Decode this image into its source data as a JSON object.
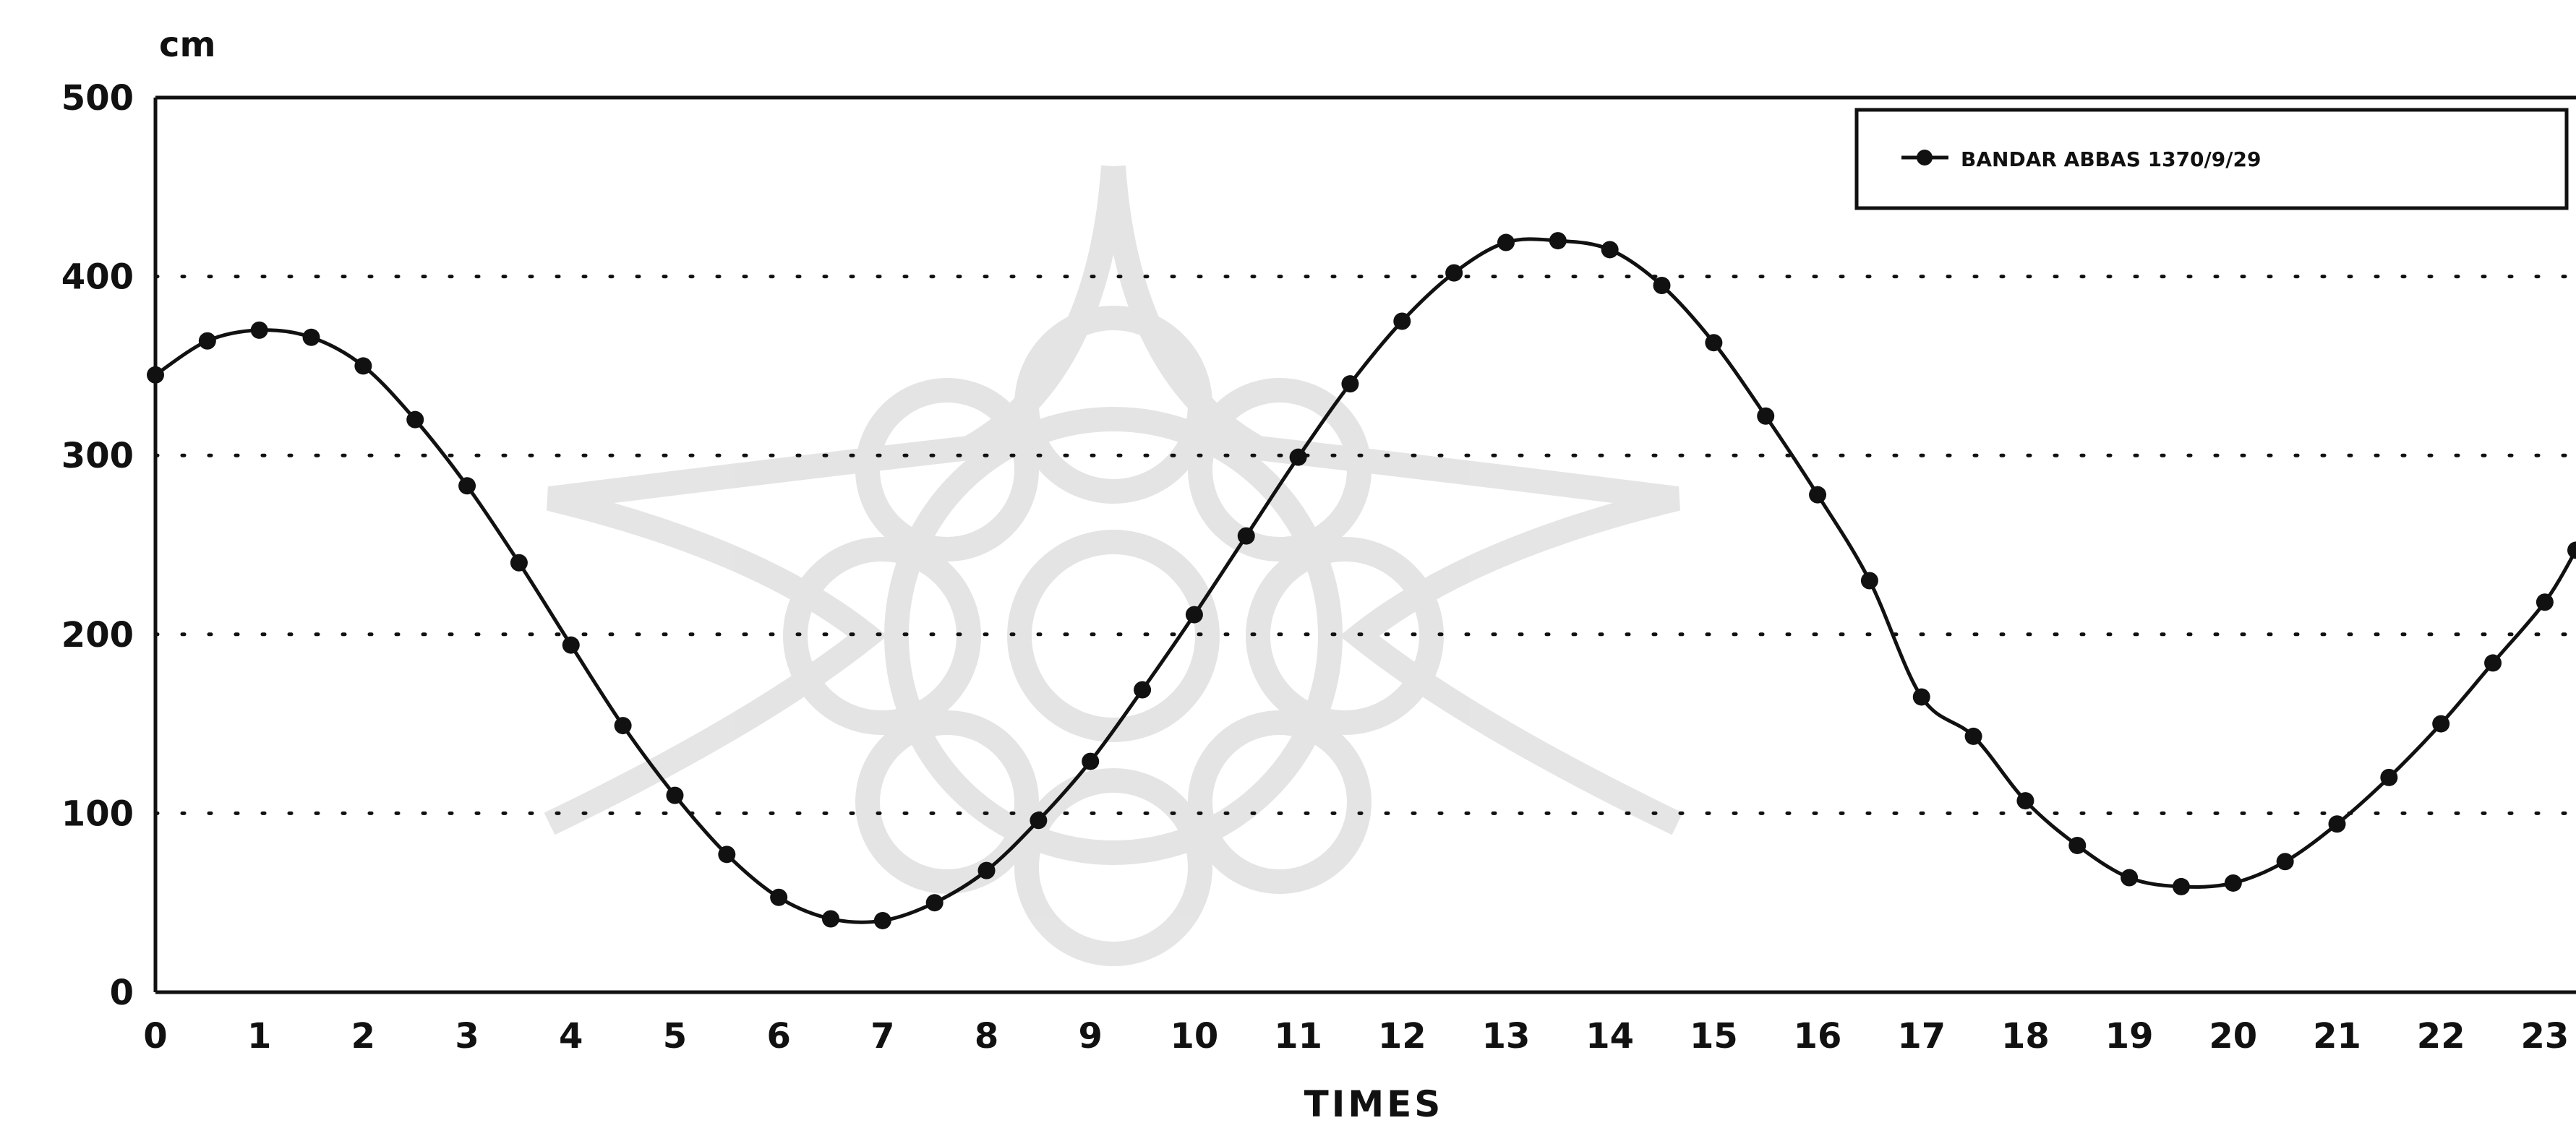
{
  "chart_data": {
    "type": "line",
    "ylabel": "cm",
    "xlabel": "TIMES",
    "xlim": [
      0,
      23.3
    ],
    "ylim": [
      0,
      500
    ],
    "xticks": [
      0,
      1,
      2,
      3,
      4,
      5,
      6,
      7,
      8,
      9,
      10,
      11,
      12,
      13,
      14,
      15,
      16,
      17,
      18,
      19,
      20,
      21,
      22,
      23
    ],
    "xtick_labels": [
      "0",
      "1",
      "2",
      "3",
      "4",
      "5",
      "6",
      "7",
      "8",
      "9",
      "10",
      "11",
      "12",
      "13",
      "14",
      "15",
      "16",
      "17",
      "18",
      "19",
      "20",
      "21",
      "22",
      "23"
    ],
    "yticks": [
      0,
      100,
      200,
      300,
      400,
      500
    ],
    "ytick_labels": [
      "0",
      "100",
      "200",
      "300",
      "400",
      "500"
    ],
    "grid": "horizontal dotted",
    "legend_position": "top-right",
    "series": [
      {
        "name": "BANDAR ABBAS 1370/9/29",
        "color": "#111111",
        "marker": "circle",
        "x": [
          0,
          0.5,
          1,
          1.5,
          2,
          2.5,
          3,
          3.5,
          4,
          4.5,
          5,
          5.5,
          6,
          6.5,
          7,
          7.5,
          8,
          8.5,
          9,
          9.5,
          10,
          10.5,
          11,
          11.5,
          12,
          12.5,
          13,
          13.5,
          14,
          14.5,
          15,
          15.5,
          16,
          16.5,
          17,
          17.5,
          18,
          18.5,
          19,
          19.5,
          20,
          20.5,
          21,
          21.5,
          22,
          22.5,
          23,
          23.3
        ],
        "values": [
          345,
          364,
          370,
          366,
          350,
          320,
          283,
          240,
          194,
          149,
          110,
          77,
          53,
          41,
          40,
          50,
          68,
          96,
          129,
          169,
          211,
          255,
          299,
          340,
          375,
          402,
          419,
          420,
          415,
          395,
          363,
          322,
          278,
          230,
          165,
          143,
          107,
          82,
          64,
          59,
          61,
          73,
          94,
          120,
          150,
          184,
          218,
          247
        ]
      }
    ]
  }
}
